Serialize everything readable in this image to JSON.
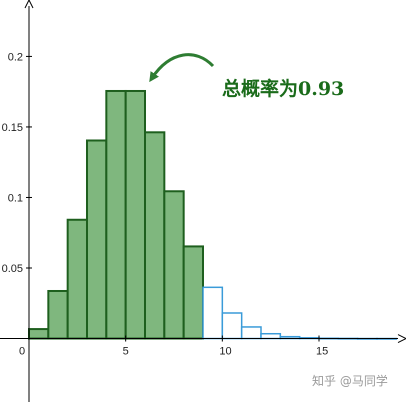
{
  "chart_data": {
    "type": "bar",
    "title": "",
    "xlabel": "",
    "ylabel": "",
    "xlim": [
      -1.5,
      19.5
    ],
    "ylim": [
      -0.045,
      0.24
    ],
    "x_ticks": [
      {
        "value": 0,
        "label": "0"
      },
      {
        "value": 5,
        "label": "5"
      },
      {
        "value": 10,
        "label": "10"
      },
      {
        "value": 15,
        "label": "15"
      }
    ],
    "y_ticks": [
      {
        "value": 0.05,
        "label": "0.05"
      },
      {
        "value": 0.1,
        "label": "0.1"
      },
      {
        "value": 0.15,
        "label": "0.15"
      },
      {
        "value": 0.2,
        "label": "0.2"
      }
    ],
    "series": [
      {
        "shaded": true,
        "color": "#7fb77e",
        "stroke": "#1e5f1e",
        "x": [
          0,
          1,
          2,
          3,
          4,
          5,
          6,
          7,
          8
        ],
        "values": [
          0.0067,
          0.0337,
          0.0842,
          0.1404,
          0.1755,
          0.1755,
          0.1462,
          0.1044,
          0.0653
        ]
      },
      {
        "shaded": false,
        "color": "#ffffff",
        "stroke": "#3a9bd9",
        "x": [
          9,
          10,
          11,
          12,
          13,
          14,
          15,
          16,
          17,
          18
        ],
        "values": [
          0.0363,
          0.0181,
          0.0082,
          0.0034,
          0.0013,
          0.0005,
          0.0002,
          0.0001,
          0.0,
          0.0
        ]
      }
    ],
    "annotation": {
      "text": "总概率为0.93",
      "color": "#1a6b1a"
    },
    "grid": false,
    "legend": "none"
  },
  "watermark": "知乎 @马同学"
}
